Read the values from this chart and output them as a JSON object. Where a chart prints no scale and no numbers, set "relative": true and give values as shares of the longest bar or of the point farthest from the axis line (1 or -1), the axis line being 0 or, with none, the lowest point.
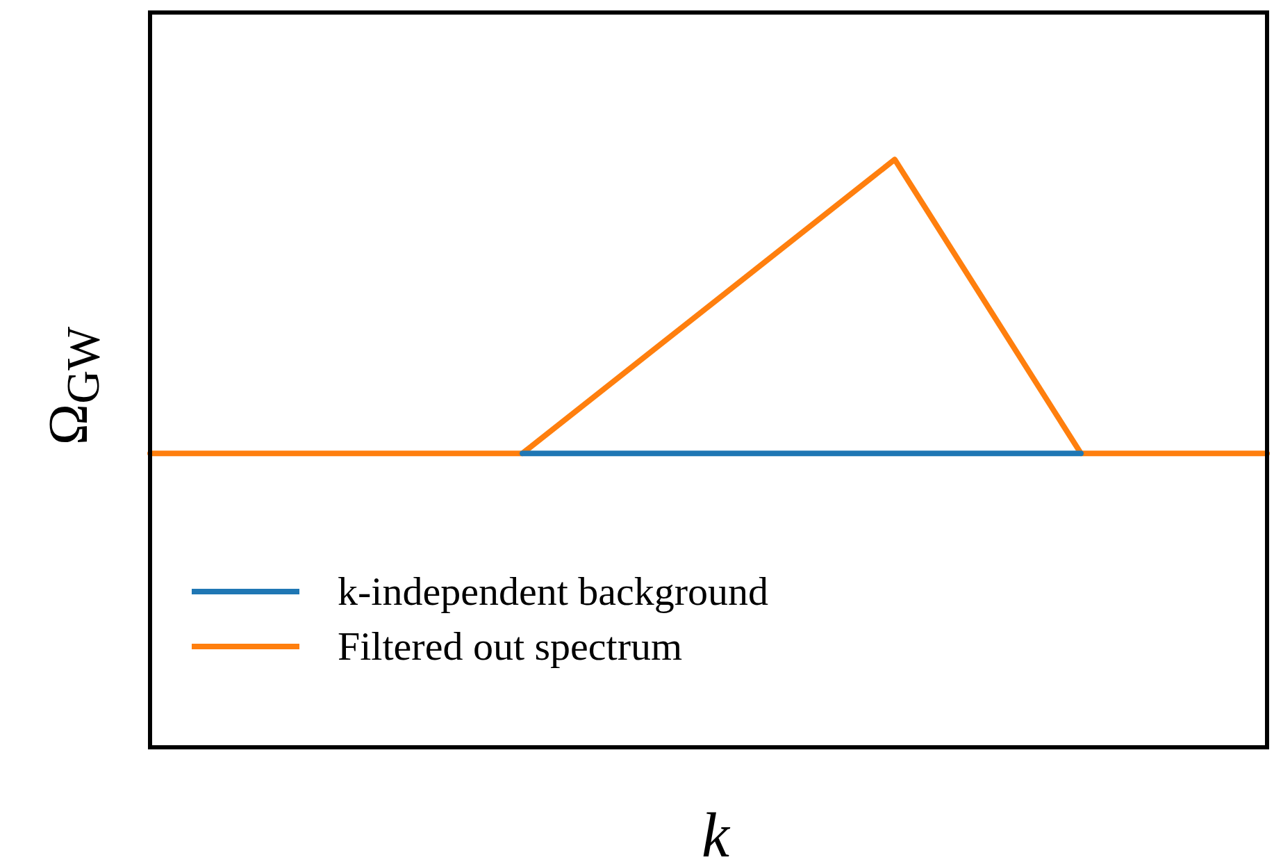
{
  "chart_data": {
    "type": "line",
    "relative": true,
    "xlabel": "k",
    "ylabel": "Ω$_{GW}$",
    "categories": [
      null,
      null,
      null,
      null,
      null,
      null,
      null
    ],
    "series": [
      {
        "name": "k-independent background",
        "color": "#1f77b4",
        "values": [
          null,
          null,
          0.5,
          0.5,
          0.5,
          0.5,
          null
        ]
      },
      {
        "name": "Filtered out spectrum",
        "color": "#ff7f0e",
        "values": [
          0.5,
          0.5,
          0.5,
          0.75,
          1,
          0.5,
          0.5
        ]
      }
    ],
    "legend": "bottom left",
    "marker": "none",
    "line_style": "solid"
  }
}
